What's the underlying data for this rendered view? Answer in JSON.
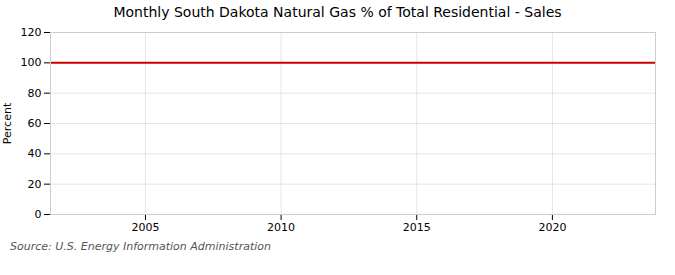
{
  "chart_data": {
    "type": "line",
    "title": "Monthly South Dakota Natural Gas % of Total Residential - Sales",
    "ylabel": "Percent",
    "source": "Source: U.S. Energy Information Administration",
    "x": [
      2001.5,
      2023.8
    ],
    "values": [
      100,
      100
    ],
    "color": "#cc0000",
    "xlim": [
      2001.5,
      2023.8
    ],
    "xticks": [
      2005,
      2010,
      2015,
      2020
    ],
    "ylim": [
      0,
      120
    ],
    "yticks": [
      0,
      20,
      40,
      60,
      80,
      100,
      120
    ],
    "grid": true
  }
}
